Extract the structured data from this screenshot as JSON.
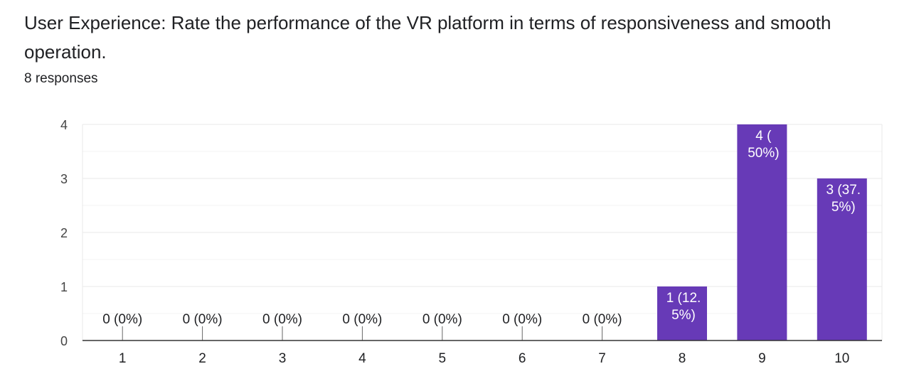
{
  "header": {
    "question": "User Experience: Rate the performance of the VR platform in terms of responsiveness and smooth operation.",
    "responses": "8 responses"
  },
  "colors": {
    "bar": "#673ab7",
    "grid": "#e8e8e8",
    "baseline": "#333333",
    "text": "#202124",
    "bar_label_inside": "#ffffff"
  },
  "chart_data": {
    "type": "bar",
    "title": "",
    "xlabel": "",
    "ylabel": "",
    "categories": [
      "1",
      "2",
      "3",
      "4",
      "5",
      "6",
      "7",
      "8",
      "9",
      "10"
    ],
    "values": [
      0,
      0,
      0,
      0,
      0,
      0,
      0,
      1,
      4,
      3
    ],
    "data_labels": [
      [
        "0 (0%)"
      ],
      [
        "0 (0%)"
      ],
      [
        "0 (0%)"
      ],
      [
        "0 (0%)"
      ],
      [
        "0 (0%)"
      ],
      [
        "0 (0%)"
      ],
      [
        "0 (0%)"
      ],
      [
        "1 (12.",
        "5%)"
      ],
      [
        "4 (",
        "50%)"
      ],
      [
        "3 (37.",
        "5%)"
      ]
    ],
    "ylim": [
      0,
      4
    ],
    "yticks": [
      0,
      1,
      2,
      3,
      4
    ],
    "grid": true,
    "legend": "none"
  }
}
